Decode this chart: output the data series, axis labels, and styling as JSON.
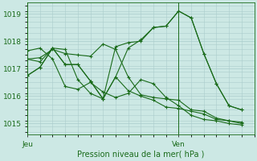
{
  "bg_color": "#cce8e4",
  "grid_color": "#aacccc",
  "line_color": "#1a6b1a",
  "xlabel": "Pression niveau de la mer( hPa )",
  "xlabel_fontsize": 7,
  "tick_fontsize": 6.5,
  "ylim": [
    1014.6,
    1019.4
  ],
  "yticks": [
    1015,
    1016,
    1017,
    1018,
    1019
  ],
  "xlim": [
    0,
    36
  ],
  "x_jeu": 0,
  "x_ven": 24,
  "xtick_vals": [
    0,
    24
  ],
  "xtick_labels": [
    "Jeu",
    "Ven"
  ],
  "series": [
    [
      0,
      1017.35,
      2,
      1017.4,
      4,
      1017.7,
      6,
      1017.55,
      8,
      1017.5,
      10,
      1017.45,
      12,
      1017.9,
      14,
      1017.7,
      16,
      1016.7,
      18,
      1016.05,
      20,
      1015.95,
      22,
      1015.9,
      24,
      1015.85,
      26,
      1015.5,
      28,
      1015.45,
      30,
      1015.2,
      32,
      1015.1,
      34,
      1015.05
    ],
    [
      0,
      1017.35,
      2,
      1017.25,
      4,
      1017.75,
      6,
      1017.7,
      8,
      1016.6,
      10,
      1016.1,
      12,
      1015.9,
      14,
      1016.7,
      16,
      1016.2,
      18,
      1016.0,
      20,
      1015.85,
      22,
      1015.6,
      24,
      1015.55,
      26,
      1015.45,
      28,
      1015.35,
      30,
      1015.15,
      32,
      1015.1,
      34,
      1015.0
    ],
    [
      0,
      1017.65,
      2,
      1017.75,
      4,
      1017.35,
      6,
      1016.35,
      8,
      1016.25,
      10,
      1016.5,
      12,
      1016.15,
      14,
      1015.95,
      16,
      1016.1,
      18,
      1016.6,
      20,
      1016.45,
      22,
      1015.95,
      24,
      1015.65,
      26,
      1015.3,
      28,
      1015.15,
      30,
      1015.1,
      32,
      1015.0,
      34,
      1014.95
    ],
    [
      0,
      1016.75,
      2,
      1017.05,
      4,
      1017.75,
      6,
      1017.15,
      8,
      1017.15,
      10,
      1016.55,
      12,
      1015.9,
      14,
      1016.7,
      16,
      1017.75,
      18,
      1018.05,
      20,
      1018.5,
      22,
      1018.55,
      24,
      1019.1,
      26,
      1018.85,
      28,
      1017.55,
      30,
      1016.45,
      32,
      1015.65,
      34,
      1015.5
    ],
    [
      0,
      1016.75,
      2,
      1017.05,
      4,
      1017.75,
      6,
      1017.15,
      8,
      1017.15,
      10,
      1016.55,
      12,
      1015.9,
      14,
      1017.8,
      16,
      1017.95,
      18,
      1018.0,
      20,
      1018.5,
      22,
      1018.55,
      24,
      1019.1,
      26,
      1018.85,
      28,
      1017.55,
      30,
      1016.45,
      32,
      1015.65,
      34,
      1015.5
    ]
  ]
}
